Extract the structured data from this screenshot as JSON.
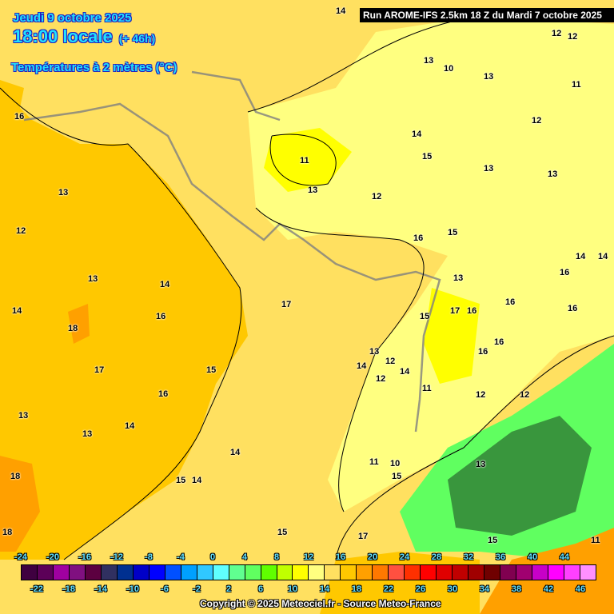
{
  "header": {
    "date": "Jeudi 9 octobre 2025",
    "time": "18:00 locale",
    "lead": "(+ 46h)",
    "variable": "Températures à 2 mètres (°C)",
    "run": "Run AROME-IFS 2.5km 18 Z du Mardi 7 octobre 2025"
  },
  "footer": {
    "copyright": "Copyright © 2025 Meteociel.fr - Source Meteo-France"
  },
  "colorbar": {
    "top_labels": [
      "-24",
      "-20",
      "-16",
      "-12",
      "-8",
      "-4",
      "0",
      "4",
      "8",
      "12",
      "16",
      "20",
      "24",
      "28",
      "32",
      "36",
      "40",
      "44"
    ],
    "bottom_labels": [
      "-22",
      "-18",
      "-14",
      "-10",
      "-6",
      "-2",
      "2",
      "6",
      "10",
      "14",
      "18",
      "22",
      "26",
      "30",
      "34",
      "38",
      "42",
      "46"
    ],
    "colors": [
      "#3f0040",
      "#5c0058",
      "#a000a0",
      "#801080",
      "#5c0040",
      "#303060",
      "#003090",
      "#0000c8",
      "#0000ff",
      "#0050ff",
      "#00a0ff",
      "#30c8ff",
      "#60ffff",
      "#60ff90",
      "#60ff60",
      "#60ff00",
      "#c0ff00",
      "#ffff00",
      "#ffff80",
      "#ffe060",
      "#ffc800",
      "#ffa000",
      "#ff7800",
      "#ff5040",
      "#ff3000",
      "#ff0000",
      "#e00000",
      "#c00000",
      "#a00000",
      "#700000",
      "#800050",
      "#a00070",
      "#c800c8",
      "#ff00ff",
      "#ff40ff",
      "#ff90ff"
    ]
  },
  "map": {
    "field_colors": {
      "warm_orange": "#ffc800",
      "mid_yellow": "#ffe060",
      "light_yellow": "#ffff80",
      "yellow": "#ffff00",
      "green": "#60ff60",
      "hot_orange": "#ffa000"
    },
    "contour_labels": [
      "14",
      "12",
      "13",
      "10",
      "11",
      "12",
      "12",
      "13",
      "16",
      "14",
      "15",
      "13",
      "11",
      "13",
      "12",
      "13",
      "13",
      "14",
      "16",
      "14",
      "16",
      "15",
      "13",
      "12",
      "13",
      "14",
      "17",
      "16",
      "16",
      "18",
      "16",
      "15",
      "17",
      "16",
      "16",
      "17",
      "15",
      "14",
      "16",
      "13",
      "14",
      "12",
      "14",
      "12",
      "16",
      "11",
      "12",
      "12",
      "13",
      "14",
      "13",
      "14",
      "15",
      "14",
      "11",
      "10",
      "15",
      "13",
      "17",
      "15",
      "18",
      "18",
      "15",
      "11"
    ]
  }
}
